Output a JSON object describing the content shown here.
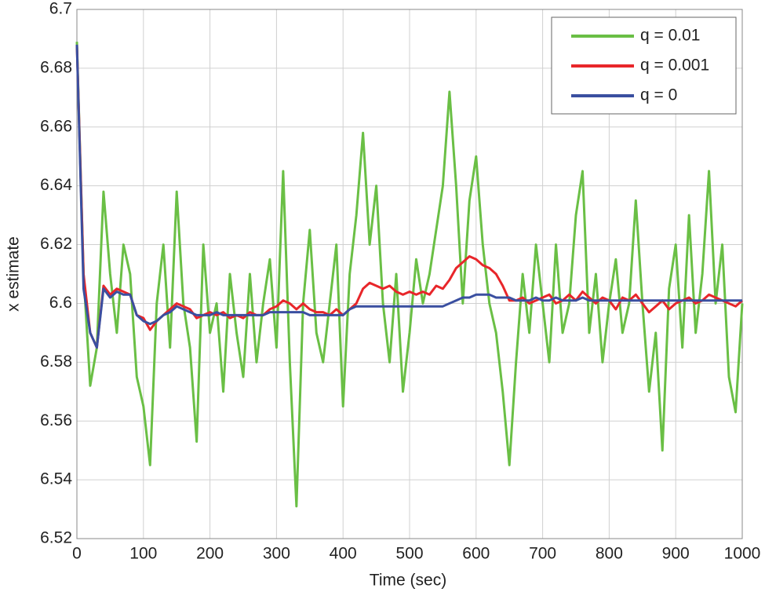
{
  "chart_data": {
    "type": "line",
    "xlabel": "Time (sec)",
    "ylabel": "x estimate",
    "x": [
      0,
      10,
      20,
      30,
      40,
      50,
      60,
      70,
      80,
      90,
      100,
      110,
      120,
      130,
      140,
      150,
      160,
      170,
      180,
      190,
      200,
      210,
      220,
      230,
      240,
      250,
      260,
      270,
      280,
      290,
      300,
      310,
      320,
      330,
      340,
      350,
      360,
      370,
      380,
      390,
      400,
      410,
      420,
      430,
      440,
      450,
      460,
      470,
      480,
      490,
      500,
      510,
      520,
      530,
      540,
      550,
      560,
      570,
      580,
      590,
      600,
      610,
      620,
      630,
      640,
      650,
      660,
      670,
      680,
      690,
      700,
      710,
      720,
      730,
      740,
      750,
      760,
      770,
      780,
      790,
      800,
      810,
      820,
      830,
      840,
      850,
      860,
      870,
      880,
      890,
      900,
      910,
      920,
      930,
      940,
      950,
      960,
      970,
      980,
      990,
      1000
    ],
    "series": [
      {
        "name": "q = 0.01",
        "color": "#6abf45",
        "values": [
          6.689,
          6.61,
          6.572,
          6.585,
          6.638,
          6.61,
          6.59,
          6.62,
          6.61,
          6.575,
          6.565,
          6.545,
          6.6,
          6.62,
          6.585,
          6.638,
          6.6,
          6.585,
          6.553,
          6.62,
          6.59,
          6.6,
          6.57,
          6.61,
          6.59,
          6.575,
          6.61,
          6.58,
          6.6,
          6.615,
          6.585,
          6.645,
          6.58,
          6.531,
          6.6,
          6.625,
          6.59,
          6.58,
          6.6,
          6.62,
          6.565,
          6.61,
          6.63,
          6.658,
          6.62,
          6.64,
          6.6,
          6.58,
          6.61,
          6.57,
          6.59,
          6.615,
          6.6,
          6.61,
          6.625,
          6.64,
          6.672,
          6.64,
          6.6,
          6.635,
          6.65,
          6.62,
          6.6,
          6.59,
          6.57,
          6.545,
          6.58,
          6.61,
          6.59,
          6.62,
          6.6,
          6.58,
          6.62,
          6.59,
          6.6,
          6.63,
          6.645,
          6.59,
          6.61,
          6.58,
          6.6,
          6.615,
          6.59,
          6.6,
          6.635,
          6.6,
          6.57,
          6.59,
          6.55,
          6.605,
          6.62,
          6.585,
          6.63,
          6.59,
          6.61,
          6.645,
          6.6,
          6.62,
          6.575,
          6.563,
          6.6
        ]
      },
      {
        "name": "q = 0.001",
        "color": "#e8262a",
        "values": [
          6.688,
          6.61,
          6.59,
          6.585,
          6.606,
          6.603,
          6.605,
          6.604,
          6.603,
          6.596,
          6.595,
          6.591,
          6.594,
          6.596,
          6.598,
          6.6,
          6.599,
          6.598,
          6.595,
          6.596,
          6.597,
          6.596,
          6.597,
          6.595,
          6.596,
          6.595,
          6.597,
          6.596,
          6.596,
          6.598,
          6.599,
          6.601,
          6.6,
          6.598,
          6.6,
          6.598,
          6.597,
          6.597,
          6.596,
          6.598,
          6.596,
          6.598,
          6.6,
          6.605,
          6.607,
          6.606,
          6.605,
          6.606,
          6.604,
          6.603,
          6.604,
          6.603,
          6.604,
          6.603,
          6.606,
          6.605,
          6.608,
          6.612,
          6.614,
          6.616,
          6.615,
          6.613,
          6.612,
          6.61,
          6.606,
          6.601,
          6.601,
          6.602,
          6.6,
          6.601,
          6.602,
          6.603,
          6.6,
          6.601,
          6.603,
          6.601,
          6.604,
          6.602,
          6.6,
          6.602,
          6.601,
          6.598,
          6.602,
          6.601,
          6.603,
          6.6,
          6.597,
          6.599,
          6.601,
          6.598,
          6.6,
          6.601,
          6.602,
          6.6,
          6.601,
          6.603,
          6.602,
          6.601,
          6.6,
          6.599,
          6.601
        ]
      },
      {
        "name": "q = 0",
        "color": "#3a4fa0",
        "values": [
          6.688,
          6.605,
          6.59,
          6.585,
          6.605,
          6.602,
          6.604,
          6.603,
          6.603,
          6.596,
          6.594,
          6.593,
          6.594,
          6.596,
          6.597,
          6.599,
          6.598,
          6.597,
          6.596,
          6.596,
          6.596,
          6.597,
          6.596,
          6.596,
          6.596,
          6.596,
          6.596,
          6.596,
          6.596,
          6.597,
          6.597,
          6.597,
          6.597,
          6.597,
          6.597,
          6.596,
          6.596,
          6.596,
          6.596,
          6.596,
          6.596,
          6.598,
          6.599,
          6.599,
          6.599,
          6.599,
          6.599,
          6.599,
          6.599,
          6.599,
          6.599,
          6.599,
          6.599,
          6.599,
          6.599,
          6.599,
          6.6,
          6.601,
          6.602,
          6.602,
          6.603,
          6.603,
          6.603,
          6.602,
          6.602,
          6.602,
          6.601,
          6.601,
          6.601,
          6.602,
          6.601,
          6.601,
          6.602,
          6.601,
          6.601,
          6.601,
          6.602,
          6.601,
          6.601,
          6.601,
          6.601,
          6.601,
          6.601,
          6.601,
          6.601,
          6.601,
          6.601,
          6.601,
          6.601,
          6.601,
          6.601,
          6.601,
          6.601,
          6.601,
          6.601,
          6.601,
          6.601,
          6.601,
          6.601,
          6.601,
          6.601
        ]
      }
    ],
    "xlim": [
      0,
      1000
    ],
    "xticks": [
      0,
      100,
      200,
      300,
      400,
      500,
      600,
      700,
      800,
      900,
      1000
    ],
    "ylim": [
      6.52,
      6.7
    ],
    "yticks": [
      6.52,
      6.54,
      6.56,
      6.58,
      6.6,
      6.62,
      6.64,
      6.66,
      6.68,
      6.7
    ],
    "grid": true,
    "legend": "upper right"
  }
}
